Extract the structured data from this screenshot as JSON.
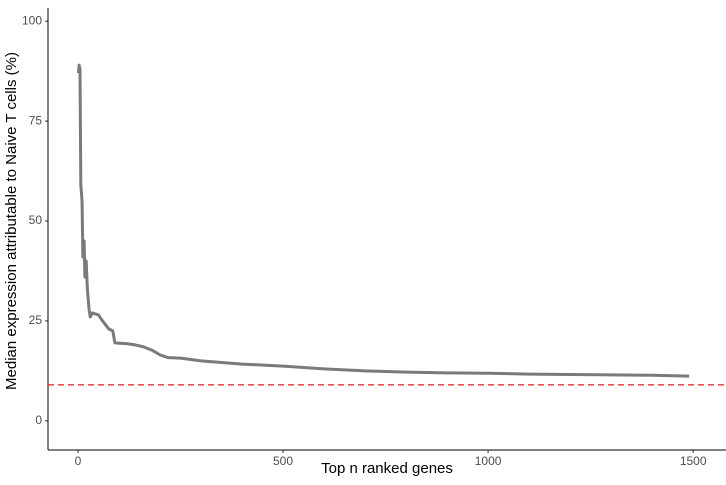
{
  "chart_data": {
    "type": "line",
    "x_label": "Top n ranked genes",
    "y_label": "Median expression attributable to Naive T cells (%)",
    "series": [
      {
        "color": "#7a7a7a",
        "x": [
          1,
          3,
          5,
          7,
          10,
          12,
          15,
          17,
          20,
          23,
          27,
          30,
          35,
          50,
          60,
          75,
          85,
          90,
          120,
          140,
          160,
          180,
          200,
          220,
          250,
          300,
          400,
          500,
          600,
          700,
          800,
          900,
          1000,
          1100,
          1200,
          1300,
          1400,
          1490
        ],
        "values": [
          87,
          89,
          88,
          59,
          55,
          41,
          45,
          36,
          40,
          33,
          28,
          26,
          27,
          26.5,
          25,
          23,
          22.5,
          19.5,
          19.3,
          19,
          18.5,
          17.7,
          16.5,
          15.8,
          15.7,
          15,
          14.2,
          13.7,
          13,
          12.5,
          12.2,
          12,
          11.9,
          11.7,
          11.6,
          11.5,
          11.4,
          11.2
        ]
      }
    ],
    "hline": {
      "value": 9,
      "color": "#e41a1c",
      "dashed": true
    },
    "xlim": [
      -73,
      1580
    ],
    "ylim": [
      -7.3,
      103.3
    ],
    "xticks": [
      0,
      500,
      1000,
      1500
    ],
    "yticks": [
      0,
      25,
      50,
      75,
      100
    ],
    "grid": false
  }
}
